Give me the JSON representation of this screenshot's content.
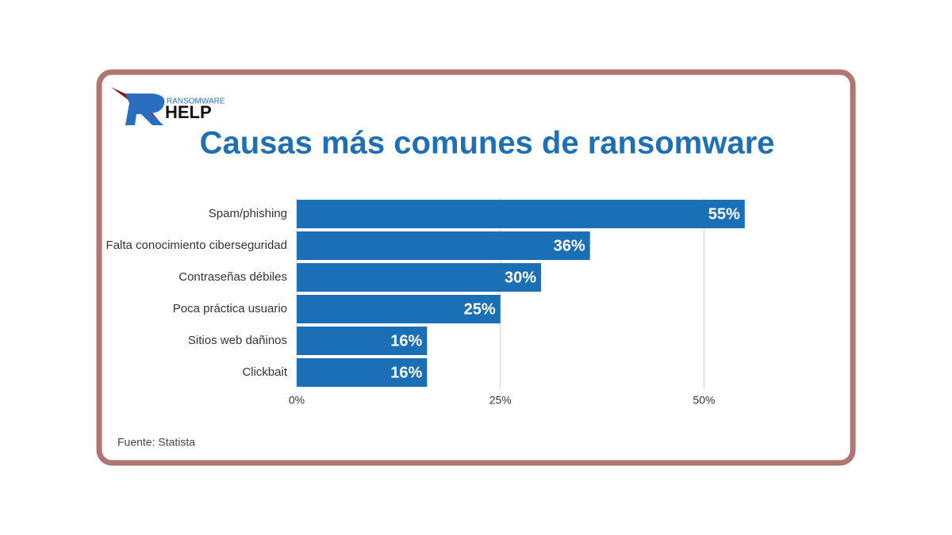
{
  "logo": {
    "top": "RANSOMWARE",
    "bottom": "HELP"
  },
  "chart_data": {
    "type": "bar",
    "orientation": "horizontal",
    "title": "Causas más comunes de ransomware",
    "categories": [
      "Spam/phishing",
      "Falta conocimiento ciberseguridad",
      "Contraseñas débiles",
      "Poca práctica usuario",
      "Sitios web dañinos",
      "Clickbait"
    ],
    "values": [
      55,
      36,
      30,
      25,
      16,
      16
    ],
    "value_labels": [
      "55%",
      "36%",
      "30%",
      "25%",
      "16%",
      "16%"
    ],
    "color": "#1a6fb5",
    "xlim": [
      0,
      67
    ],
    "xticks": [
      {
        "value": 0,
        "label": "0%"
      },
      {
        "value": 25,
        "label": "25%"
      },
      {
        "value": 50,
        "label": "50%"
      }
    ],
    "grid": true,
    "source": "Fuente: Statista"
  }
}
